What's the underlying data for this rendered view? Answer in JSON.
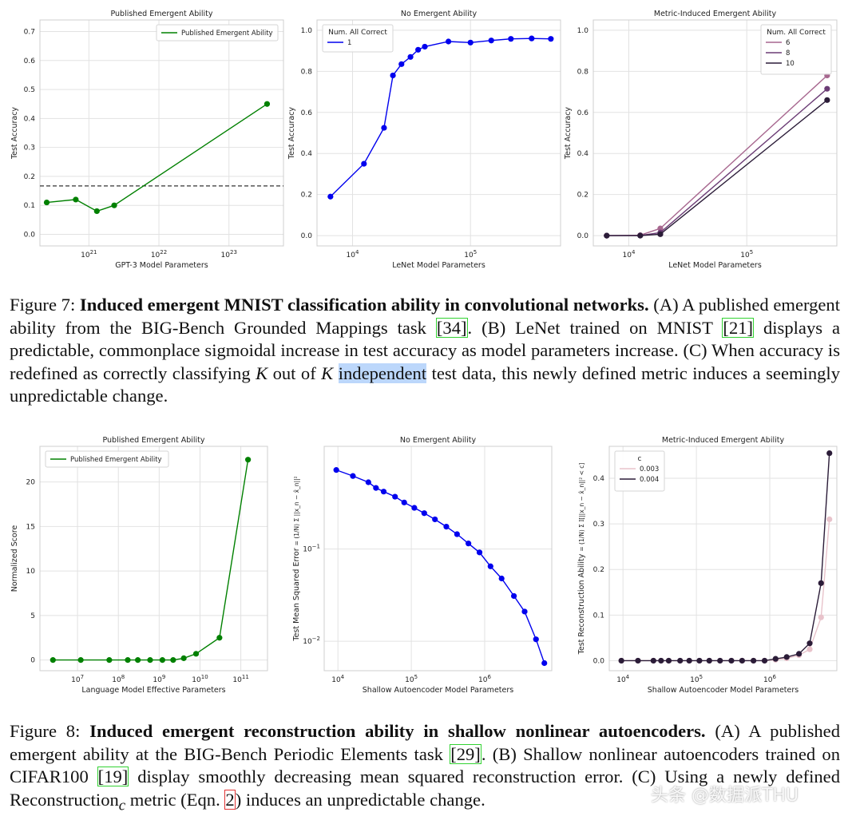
{
  "chart_data": [
    {
      "id": "f7a",
      "type": "line",
      "title": "Published Emergent Ability",
      "xlabel": "GPT-3 Model Parameters",
      "ylabel": "Test Accuracy",
      "xscale": "log",
      "xlim": [
        2e+20,
        6e+23
      ],
      "ylim": [
        -0.04,
        0.74
      ],
      "xticks": [
        {
          "v": 1e+21,
          "label": "10",
          "exp": "21"
        },
        {
          "v": 1e+22,
          "label": "10",
          "exp": "22"
        },
        {
          "v": 1e+23,
          "label": "10",
          "exp": "23"
        }
      ],
      "yticks": [
        {
          "v": 0.0,
          "label": "0.0"
        },
        {
          "v": 0.1,
          "label": "0.1"
        },
        {
          "v": 0.2,
          "label": "0.2"
        },
        {
          "v": 0.3,
          "label": "0.3"
        },
        {
          "v": 0.4,
          "label": "0.4"
        },
        {
          "v": 0.5,
          "label": "0.5"
        },
        {
          "v": 0.6,
          "label": "0.6"
        },
        {
          "v": 0.7,
          "label": "0.7"
        }
      ],
      "hline": 0.167,
      "legend": {
        "position": "top-right",
        "title": "",
        "entries": [
          {
            "label": "Published Emergent Ability",
            "color": "#008000"
          }
        ]
      },
      "series": [
        {
          "name": "Published Emergent Ability",
          "color": "#008000",
          "x": [
            2.5e+20,
            6.5e+20,
            1.3e+21,
            2.3e+21,
            3.5e+23
          ],
          "y": [
            0.11,
            0.12,
            0.08,
            0.1,
            0.45
          ]
        }
      ]
    },
    {
      "id": "f7b",
      "type": "line",
      "title": "No Emergent Ability",
      "xlabel": "LeNet Model Parameters",
      "ylabel": "Test Accuracy",
      "xscale": "log",
      "xlim": [
        5000.0,
        580000.0
      ],
      "ylim": [
        -0.05,
        1.05
      ],
      "xticks": [
        {
          "v": 10000.0,
          "label": "10",
          "exp": "4"
        },
        {
          "v": 100000.0,
          "label": "10",
          "exp": "5"
        }
      ],
      "yticks": [
        {
          "v": 0.0,
          "label": "0.0"
        },
        {
          "v": 0.2,
          "label": "0.2"
        },
        {
          "v": 0.4,
          "label": "0.4"
        },
        {
          "v": 0.6,
          "label": "0.6"
        },
        {
          "v": 0.8,
          "label": "0.8"
        },
        {
          "v": 1.0,
          "label": "1.0"
        }
      ],
      "legend": {
        "position": "top-left",
        "title": "Num. All Correct",
        "entries": [
          {
            "label": "1",
            "color": "#0000ee"
          }
        ]
      },
      "series": [
        {
          "name": "1",
          "color": "#0000ee",
          "x": [
            6500.0,
            12500.0,
            18500.0,
            22000.0,
            26000.0,
            31000.0,
            36000.0,
            41000.0,
            65000.0,
            100000.0,
            150000.0,
            220000.0,
            330000.0,
            480000.0
          ],
          "y": [
            0.19,
            0.35,
            0.525,
            0.78,
            0.835,
            0.87,
            0.905,
            0.92,
            0.945,
            0.94,
            0.95,
            0.958,
            0.96,
            0.958
          ]
        }
      ]
    },
    {
      "id": "f7c",
      "type": "line",
      "title": "Metric-Induced Emergent Ability",
      "xlabel": "LeNet Model Parameters",
      "ylabel": "Test Accuracy",
      "xscale": "log",
      "xlim": [
        5000.0,
        580000.0
      ],
      "ylim": [
        -0.05,
        1.05
      ],
      "xticks": [
        {
          "v": 10000.0,
          "label": "10",
          "exp": "4"
        },
        {
          "v": 100000.0,
          "label": "10",
          "exp": "5"
        }
      ],
      "yticks": [
        {
          "v": 0.0,
          "label": "0.0"
        },
        {
          "v": 0.2,
          "label": "0.2"
        },
        {
          "v": 0.4,
          "label": "0.4"
        },
        {
          "v": 0.6,
          "label": "0.6"
        },
        {
          "v": 0.8,
          "label": "0.8"
        },
        {
          "v": 1.0,
          "label": "1.0"
        }
      ],
      "legend": {
        "position": "top-right",
        "title": "Num. All Correct",
        "entries": [
          {
            "label": "6",
            "color": "#a7678f"
          },
          {
            "label": "8",
            "color": "#6b3c75"
          },
          {
            "label": "10",
            "color": "#2b1c38"
          }
        ]
      },
      "series": [
        {
          "name": "6",
          "color": "#a7678f",
          "x": [
            6500.0,
            12500.0,
            18500.0,
            480000.0
          ],
          "y": [
            0.0,
            0.002,
            0.035,
            0.78
          ]
        },
        {
          "name": "8",
          "color": "#6b3c75",
          "x": [
            6500.0,
            12500.0,
            18500.0,
            480000.0
          ],
          "y": [
            0.0,
            0.001,
            0.015,
            0.715
          ]
        },
        {
          "name": "10",
          "color": "#2b1c38",
          "x": [
            6500.0,
            12500.0,
            18500.0,
            480000.0
          ],
          "y": [
            0.0,
            0.0,
            0.007,
            0.66
          ]
        }
      ]
    },
    {
      "id": "f8a",
      "type": "line",
      "title": "Published Emergent Ability",
      "xlabel": "Language Model Effective Parameters",
      "ylabel": "Normalized Score",
      "xscale": "log",
      "xlim": [
        1200000.0,
        450000000000.0
      ],
      "ylim": [
        -1.2,
        24.0
      ],
      "xticks": [
        {
          "v": 10000000.0,
          "label": "10",
          "exp": "7"
        },
        {
          "v": 100000000.0,
          "label": "10",
          "exp": "8"
        },
        {
          "v": 1000000000.0,
          "label": "10",
          "exp": "9"
        },
        {
          "v": 10000000000.0,
          "label": "10",
          "exp": "10"
        },
        {
          "v": 100000000000.0,
          "label": "10",
          "exp": "11"
        }
      ],
      "yticks": [
        {
          "v": 0,
          "label": "0"
        },
        {
          "v": 5,
          "label": "5"
        },
        {
          "v": 10,
          "label": "10"
        },
        {
          "v": 15,
          "label": "15"
        },
        {
          "v": 20,
          "label": "20"
        }
      ],
      "legend": {
        "position": "top-left",
        "title": "",
        "entries": [
          {
            "label": "Published Emergent Ability",
            "color": "#008000"
          }
        ]
      },
      "series": [
        {
          "name": "Published Emergent Ability",
          "color": "#008000",
          "x": [
            2500000.0,
            12000000.0,
            60000000.0,
            170000000.0,
            300000000.0,
            600000000.0,
            1200000000.0,
            2200000000.0,
            4000000000.0,
            8000000000.0,
            30000000000.0,
            150000000000.0
          ],
          "y": [
            0,
            0,
            0,
            0,
            0,
            0,
            0,
            0,
            0.2,
            0.7,
            2.5,
            22.5
          ]
        }
      ]
    },
    {
      "id": "f8b",
      "type": "line",
      "title": "No Emergent Ability",
      "xlabel": "Shallow Autoencoder Model Parameters",
      "ylabel": "Test Mean Squared Error",
      "ylabel_math": "= (1/N) Σ ||x_n − x̂_n||²",
      "xscale": "log",
      "yscale": "log",
      "xlim": [
        6500.0,
        8200000.0
      ],
      "ylim": [
        0.0048,
        1.3
      ],
      "xticks": [
        {
          "v": 10000.0,
          "label": "10",
          "exp": "4"
        },
        {
          "v": 100000.0,
          "label": "10",
          "exp": "5"
        },
        {
          "v": 1000000.0,
          "label": "10",
          "exp": "6"
        }
      ],
      "yticks": [
        {
          "v": 0.01,
          "label": "10",
          "exp": "−2"
        },
        {
          "v": 0.1,
          "label": "10",
          "exp": "−1"
        }
      ],
      "series": [
        {
          "name": "MSE",
          "color": "#0000ee",
          "x": [
            9500.0,
            16000.0,
            26000.0,
            33000.0,
            42000.0,
            60000.0,
            80000.0,
            110000.0,
            150000.0,
            210000.0,
            300000.0,
            420000.0,
            600000.0,
            850000.0,
            1200000.0,
            1700000.0,
            2500000.0,
            3500000.0,
            5000000.0,
            6500000.0
          ],
          "y": [
            0.72,
            0.62,
            0.53,
            0.46,
            0.42,
            0.37,
            0.32,
            0.28,
            0.245,
            0.21,
            0.175,
            0.145,
            0.115,
            0.092,
            0.065,
            0.048,
            0.031,
            0.021,
            0.0105,
            0.0058
          ]
        }
      ]
    },
    {
      "id": "f8c",
      "type": "line",
      "title": "Metric-Induced Emergent Ability",
      "xlabel": "Shallow Autoencoder Model Parameters",
      "ylabel": "Test Reconstruction Ability",
      "ylabel_math": "= (1/N) Σ 𝕀[||x_n − x̂_n||² < c]",
      "xscale": "log",
      "xlim": [
        6500.0,
        8200000.0
      ],
      "ylim": [
        -0.022,
        0.47
      ],
      "xticks": [
        {
          "v": 10000.0,
          "label": "10",
          "exp": "4"
        },
        {
          "v": 100000.0,
          "label": "10",
          "exp": "5"
        },
        {
          "v": 1000000.0,
          "label": "10",
          "exp": "6"
        }
      ],
      "yticks": [
        {
          "v": 0.0,
          "label": "0.0"
        },
        {
          "v": 0.1,
          "label": "0.1"
        },
        {
          "v": 0.2,
          "label": "0.2"
        },
        {
          "v": 0.3,
          "label": "0.3"
        },
        {
          "v": 0.4,
          "label": "0.4"
        }
      ],
      "legend": {
        "position": "top-left",
        "title": "c",
        "entries": [
          {
            "label": "0.003",
            "color": "#e8c3cb"
          },
          {
            "label": "0.004",
            "color": "#2b1c38"
          }
        ]
      },
      "series": [
        {
          "name": "0.003",
          "color": "#e8c3cb",
          "x": [
            9500.0,
            16000.0,
            26000.0,
            33000.0,
            42000.0,
            60000.0,
            80000.0,
            110000.0,
            150000.0,
            210000.0,
            300000.0,
            420000.0,
            600000.0,
            850000.0,
            1200000.0,
            1700000.0,
            2500000.0,
            3500000.0,
            5000000.0,
            6500000.0
          ],
          "y": [
            0,
            0,
            0,
            0,
            0,
            0,
            0,
            0,
            0,
            0,
            0,
            0,
            0,
            0,
            0.002,
            0.005,
            0.012,
            0.025,
            0.095,
            0.31
          ]
        },
        {
          "name": "0.004",
          "color": "#2b1c38",
          "x": [
            9500.0,
            16000.0,
            26000.0,
            33000.0,
            42000.0,
            60000.0,
            80000.0,
            110000.0,
            150000.0,
            210000.0,
            300000.0,
            420000.0,
            600000.0,
            850000.0,
            1200000.0,
            1700000.0,
            2500000.0,
            3500000.0,
            5000000.0,
            6500000.0
          ],
          "y": [
            0,
            0,
            0,
            0,
            0,
            0,
            0,
            0,
            0,
            0,
            0,
            0,
            0,
            0,
            0.004,
            0.008,
            0.015,
            0.038,
            0.17,
            0.455
          ]
        }
      ]
    }
  ],
  "fig7": {
    "label": "Figure 7:",
    "title": "Induced emergent MNIST classification ability in convolutional networks.",
    "t1": " (A) A published emergent ability from the BIG-Bench Grounded Mappings task ",
    "ref1": "[34]",
    "t2": ". (B) LeNet trained on MNIST ",
    "ref2": "[21]",
    "t3": " displays a predictable, commonplace sigmoidal increase in test accuracy as model parameters increase. (C) When accuracy is redefined as correctly classifying ",
    "k1": "K",
    "t4": " out of ",
    "k2": "K",
    "hl": "independent",
    "t5": " test data, this newly defined metric induces a seemingly unpredictable change."
  },
  "fig8": {
    "label": "Figure 8:",
    "title": "Induced emergent reconstruction ability in shallow nonlinear autoencoders.",
    "t1": " (A) A published emergent ability at the BIG-Bench Periodic Elements task ",
    "ref1": "[29]",
    "t2": ". (B) Shallow nonlinear autoencoders trained on CIFAR100 ",
    "ref2": "[19]",
    "t3": " display smoothly decreasing mean squared reconstruction error. (C) Using a newly defined Reconstruction",
    "sub": "c",
    "t4": " metric (Eqn. ",
    "ref3": "2",
    "t5": ") induces an unpredictable change."
  },
  "watermark": "头条 @数据派THU"
}
